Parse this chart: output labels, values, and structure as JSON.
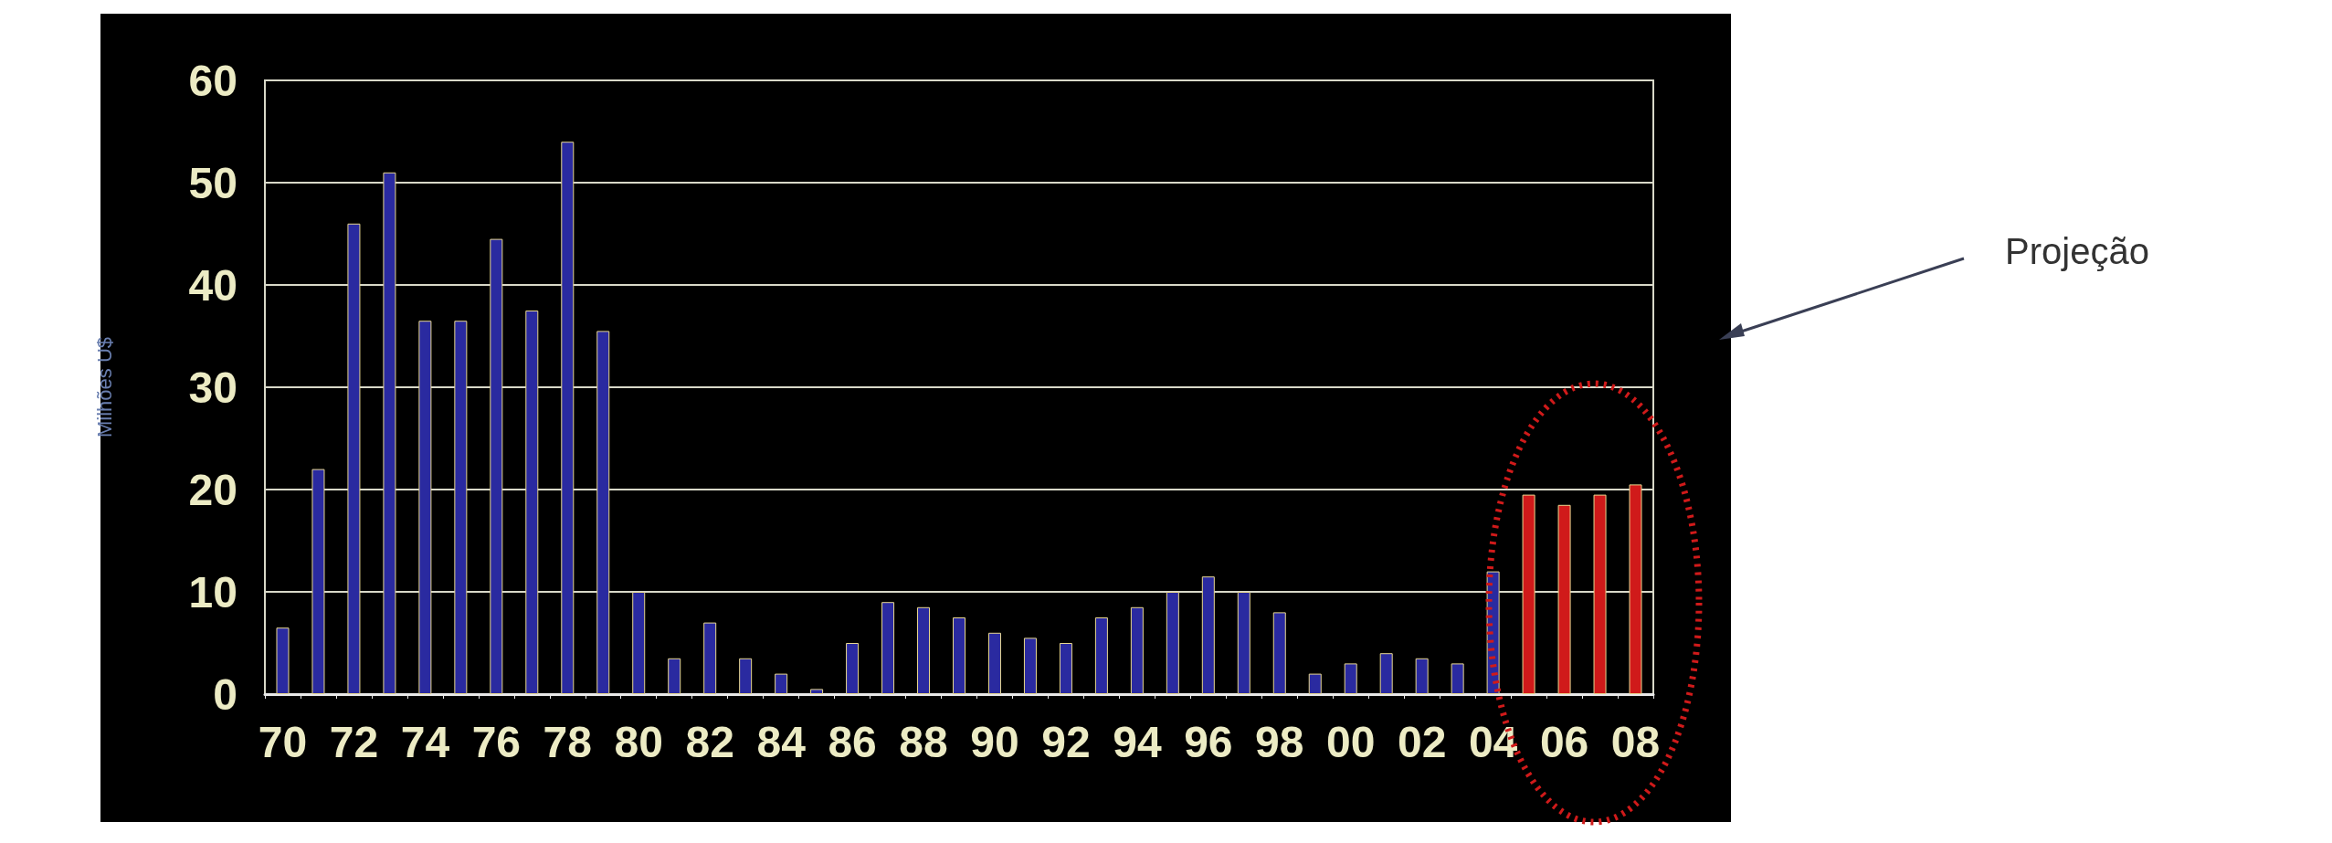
{
  "chart_data": {
    "type": "bar",
    "ylabel": "Milhões U$",
    "categories": [
      "70",
      null,
      "72",
      null,
      "74",
      null,
      "76",
      null,
      "78",
      null,
      "80",
      null,
      "82",
      null,
      "84",
      null,
      "86",
      null,
      "88",
      null,
      "90",
      null,
      "92",
      null,
      "94",
      null,
      "96",
      null,
      "98",
      null,
      "00",
      null,
      "02",
      null,
      "04",
      null,
      "06",
      null,
      "08"
    ],
    "values": [
      6.5,
      22,
      46,
      51,
      36.5,
      36.5,
      44.5,
      37.5,
      54,
      35.5,
      10,
      3.5,
      7,
      3.5,
      2,
      0.5,
      5,
      9,
      8.5,
      7.5,
      6,
      5.5,
      5,
      7.5,
      8.5,
      10,
      11.5,
      10,
      8,
      2,
      3,
      4,
      3.5,
      3,
      12,
      19.5,
      18.5,
      19.5,
      20.5
    ],
    "colors": [
      "#2a2aa0",
      "#2a2aa0",
      "#2a2aa0",
      "#2a2aa0",
      "#2a2aa0",
      "#2a2aa0",
      "#2a2aa0",
      "#2a2aa0",
      "#2a2aa0",
      "#2a2aa0",
      "#2a2aa0",
      "#2a2aa0",
      "#2a2aa0",
      "#2a2aa0",
      "#2a2aa0",
      "#2a2aa0",
      "#2a2aa0",
      "#2a2aa0",
      "#2a2aa0",
      "#2a2aa0",
      "#2a2aa0",
      "#2a2aa0",
      "#2a2aa0",
      "#2a2aa0",
      "#2a2aa0",
      "#2a2aa0",
      "#2a2aa0",
      "#2a2aa0",
      "#2a2aa0",
      "#2a2aa0",
      "#2a2aa0",
      "#2a2aa0",
      "#2a2aa0",
      "#2a2aa0",
      "#2a2aa0",
      "#d01a1a",
      "#d01a1a",
      "#d01a1a",
      "#d01a1a"
    ],
    "ylim": [
      0,
      60
    ],
    "yticks": [
      0,
      10,
      20,
      30,
      40,
      50,
      60
    ],
    "grid": "y",
    "annotations": [
      "Projeção"
    ]
  }
}
